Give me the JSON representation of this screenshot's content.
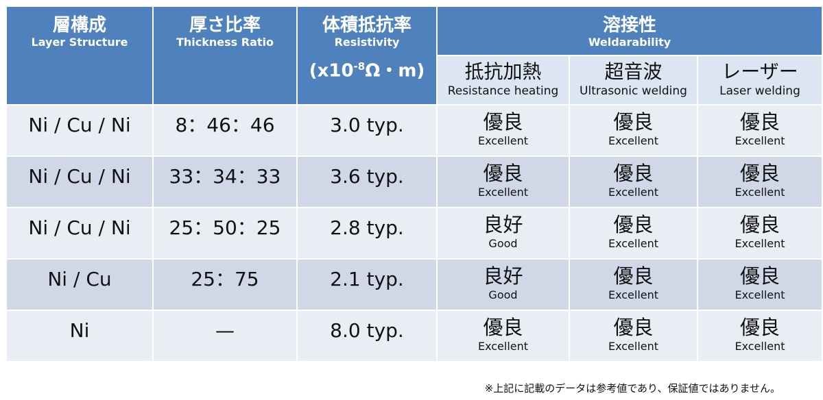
{
  "header": {
    "layer": {
      "jp": "層構成",
      "en": "Layer Structure"
    },
    "thickness": {
      "jp": "厚さ比率",
      "en": "Thickness Ratio"
    },
    "resistivity": {
      "jp": "体積抵抗率",
      "en": "Resistivity",
      "unit_pre": "(x10",
      "unit_exp": "-8",
      "unit_post": "Ω・m)"
    },
    "weldability": {
      "jp": "溶接性",
      "en": "Weldarability"
    },
    "weld_methods": [
      {
        "jp": "抵抗加熱",
        "en": "Resistance heating"
      },
      {
        "jp": "超音波",
        "en": "Ultrasonic welding"
      },
      {
        "jp": "レーザー",
        "en": "Laser welding"
      }
    ]
  },
  "rows": [
    {
      "layer": "Ni / Cu / Ni",
      "ratio": "8：46：46",
      "resistivity": "3.0 typ.",
      "weld": [
        {
          "jp": "優良",
          "en": "Excellent"
        },
        {
          "jp": "優良",
          "en": "Excellent"
        },
        {
          "jp": "優良",
          "en": "Excellent"
        }
      ]
    },
    {
      "layer": "Ni / Cu / Ni",
      "ratio": "33：34：33",
      "resistivity": "3.6 typ.",
      "weld": [
        {
          "jp": "優良",
          "en": "Excellent"
        },
        {
          "jp": "優良",
          "en": "Excellent"
        },
        {
          "jp": "優良",
          "en": "Excellent"
        }
      ]
    },
    {
      "layer": "Ni / Cu / Ni",
      "ratio": "25：50：25",
      "resistivity": "2.8 typ.",
      "weld": [
        {
          "jp": "良好",
          "en": "Good"
        },
        {
          "jp": "優良",
          "en": "Excellent"
        },
        {
          "jp": "優良",
          "en": "Excellent"
        }
      ]
    },
    {
      "layer": "Ni / Cu",
      "ratio": "25：75",
      "resistivity": "2.1 typ.",
      "weld": [
        {
          "jp": "良好",
          "en": "Good"
        },
        {
          "jp": "優良",
          "en": "Excellent"
        },
        {
          "jp": "優良",
          "en": "Excellent"
        }
      ]
    },
    {
      "layer": "Ni",
      "ratio": "—",
      "resistivity": "8.0 typ.",
      "weld": [
        {
          "jp": "優良",
          "en": "Excellent"
        },
        {
          "jp": "優良",
          "en": "Excellent"
        },
        {
          "jp": "優良",
          "en": "Excellent"
        }
      ]
    }
  ],
  "note": "※上記に記載のデータは参考値であり、保証値ではありません。"
}
